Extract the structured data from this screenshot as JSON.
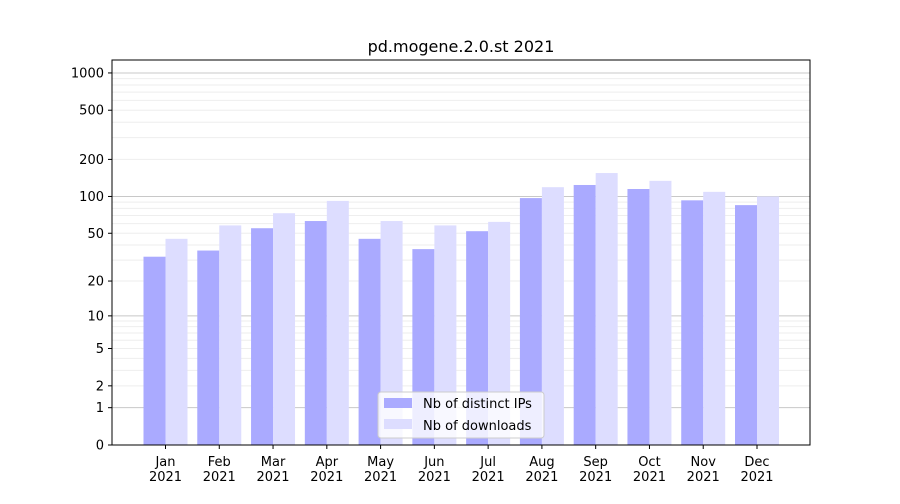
{
  "chart_data": {
    "type": "bar",
    "title": "pd.mogene.2.0.st 2021",
    "xlabel": "",
    "ylabel": "",
    "yscale": "log(y+1)",
    "ylim": [
      0,
      1260
    ],
    "yticks": [
      0,
      1,
      2,
      5,
      10,
      20,
      50,
      100,
      200,
      500,
      1000
    ],
    "grid": true,
    "legend_position": "bottom-center",
    "categories": [
      "Jan\n2021",
      "Feb\n2021",
      "Mar\n2021",
      "Apr\n2021",
      "May\n2021",
      "Jun\n2021",
      "Jul\n2021",
      "Aug\n2021",
      "Sep\n2021",
      "Oct\n2021",
      "Nov\n2021",
      "Dec\n2021"
    ],
    "series": [
      {
        "name": "Nb of distinct IPs",
        "color": "#aaaaff",
        "values": [
          32,
          36,
          55,
          63,
          45,
          37,
          52,
          97,
          124,
          115,
          93,
          85
        ]
      },
      {
        "name": "Nb of downloads",
        "color": "#ddddff",
        "values": [
          45,
          58,
          73,
          92,
          63,
          58,
          62,
          119,
          155,
          134,
          109,
          100
        ]
      }
    ]
  }
}
